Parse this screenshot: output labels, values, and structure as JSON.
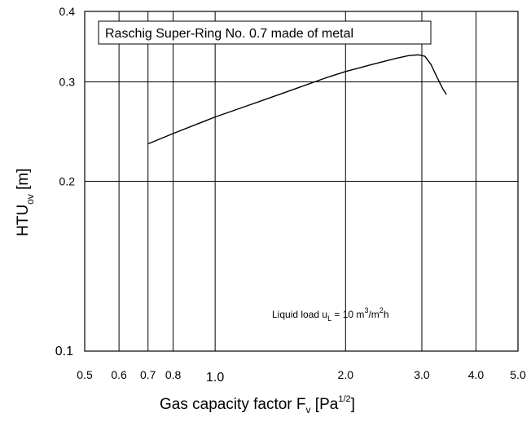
{
  "chart_data": {
    "type": "line",
    "title": "Raschig Super-Ring No. 0.7 made of metal",
    "xlabel": {
      "main": "Gas capacity factor F",
      "sub": "v",
      "unit_open": " [Pa",
      "unit_sup": "1/2",
      "unit_close": "]"
    },
    "ylabel": {
      "main": "HTU",
      "sub": "ov",
      "unit": " [m]"
    },
    "xscale": "log",
    "yscale": "log",
    "xlim": [
      0.5,
      5.0
    ],
    "ylim": [
      0.1,
      0.4
    ],
    "x_ticks": [
      {
        "value": 0.5,
        "label": "0.5"
      },
      {
        "value": 0.6,
        "label": "0.6"
      },
      {
        "value": 0.7,
        "label": "0.7"
      },
      {
        "value": 0.8,
        "label": "0.8"
      },
      {
        "value": 1.0,
        "label": "1.0"
      },
      {
        "value": 2.0,
        "label": "2.0"
      },
      {
        "value": 3.0,
        "label": "3.0"
      },
      {
        "value": 4.0,
        "label": "4.0"
      },
      {
        "value": 5.0,
        "label": "5.0"
      }
    ],
    "y_ticks": [
      {
        "value": 0.1,
        "label": "0.1"
      },
      {
        "value": 0.2,
        "label": "0.2"
      },
      {
        "value": 0.3,
        "label": "0.3"
      },
      {
        "value": 0.4,
        "label": "0.4"
      }
    ],
    "grid": true,
    "annotation": {
      "prefix": "Liquid load u",
      "sub": "L",
      "mid": " = 10 m",
      "sup1": "3",
      "mid2": "/m",
      "sup2": "2",
      "suffix": "h"
    },
    "series": [
      {
        "x": [
          0.7,
          0.8,
          1.0,
          1.2,
          1.5,
          1.8,
          2.0,
          2.3,
          2.6,
          2.8,
          2.95,
          3.05,
          3.15,
          3.25,
          3.35,
          3.42
        ],
        "y": [
          0.233,
          0.243,
          0.26,
          0.273,
          0.29,
          0.305,
          0.313,
          0.322,
          0.33,
          0.334,
          0.335,
          0.333,
          0.322,
          0.306,
          0.292,
          0.285
        ]
      }
    ]
  }
}
